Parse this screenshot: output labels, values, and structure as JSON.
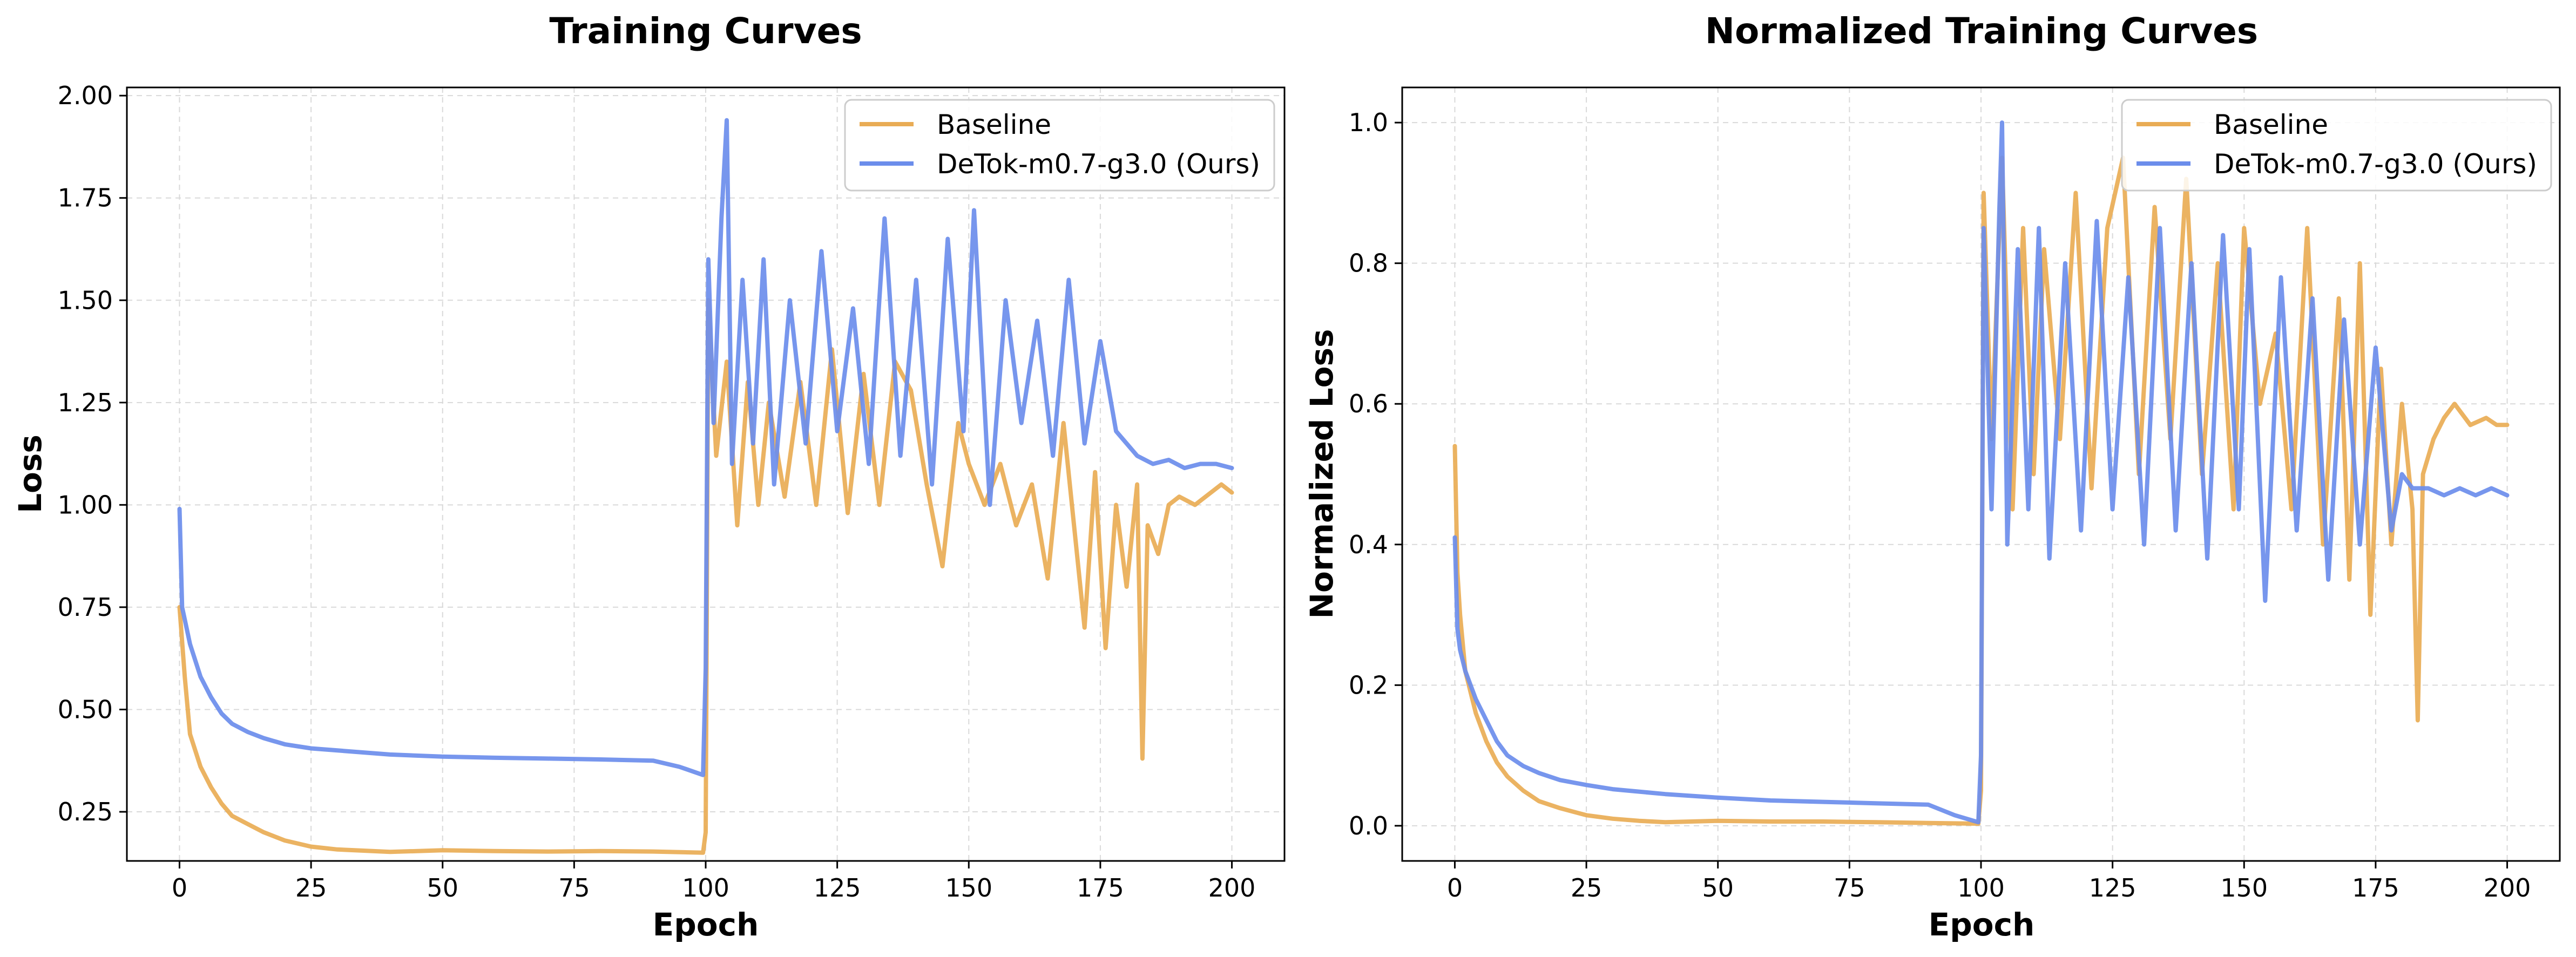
{
  "colors": {
    "baseline": "#E9AC55",
    "detok": "#6B8DEB"
  },
  "chart_data": [
    {
      "type": "line",
      "title": "Training Curves",
      "xlabel": "Epoch",
      "ylabel": "Loss",
      "xlim": [
        -10,
        210
      ],
      "ylim": [
        0.13,
        2.02
      ],
      "xticks": [
        0,
        25,
        50,
        75,
        100,
        125,
        150,
        175,
        200
      ],
      "xtick_labels": [
        "0",
        "25",
        "50",
        "75",
        "100",
        "125",
        "150",
        "175",
        "200"
      ],
      "yticks": [
        0.25,
        0.5,
        0.75,
        1.0,
        1.25,
        1.5,
        1.75,
        2.0
      ],
      "ytick_labels": [
        "0.25",
        "0.50",
        "0.75",
        "1.00",
        "1.25",
        "1.50",
        "1.75",
        "2.00"
      ],
      "grid": true,
      "legend": "top-right",
      "series": [
        {
          "name": "Baseline",
          "color": "#E9AC55",
          "x": [
            0,
            1,
            2,
            4,
            6,
            8,
            10,
            13,
            16,
            20,
            25,
            30,
            35,
            40,
            50,
            60,
            70,
            80,
            90,
            99.5,
            100,
            100.5,
            102,
            104,
            106,
            108,
            110,
            112,
            115,
            118,
            121,
            124,
            127,
            130,
            133,
            136,
            139,
            142,
            145,
            148,
            150,
            153,
            156,
            159,
            162,
            165,
            168,
            170,
            172,
            174,
            176,
            178,
            180,
            182,
            183,
            184,
            186,
            188,
            190,
            193,
            196,
            198,
            200
          ],
          "y": [
            0.75,
            0.58,
            0.44,
            0.36,
            0.31,
            0.27,
            0.24,
            0.22,
            0.2,
            0.18,
            0.165,
            0.158,
            0.155,
            0.152,
            0.156,
            0.154,
            0.153,
            0.154,
            0.153,
            0.15,
            0.2,
            1.5,
            1.12,
            1.35,
            0.95,
            1.3,
            1.0,
            1.25,
            1.02,
            1.3,
            1.0,
            1.38,
            0.98,
            1.32,
            1.0,
            1.35,
            1.28,
            1.05,
            0.85,
            1.2,
            1.1,
            1.0,
            1.1,
            0.95,
            1.05,
            0.82,
            1.2,
            0.95,
            0.7,
            1.08,
            0.65,
            1.0,
            0.8,
            1.05,
            0.38,
            0.95,
            0.88,
            1.0,
            1.02,
            1.0,
            1.03,
            1.05,
            1.03
          ]
        },
        {
          "name": "DeTok-m0.7-g3.0 (Ours)",
          "color": "#6B8DEB",
          "x": [
            0,
            0.5,
            1,
            2,
            4,
            6,
            8,
            10,
            13,
            16,
            20,
            25,
            30,
            40,
            50,
            60,
            70,
            80,
            90,
            95,
            99.5,
            100,
            100.5,
            101.5,
            103,
            104,
            105,
            107,
            109,
            111,
            113,
            116,
            119,
            122,
            125,
            128,
            131,
            134,
            137,
            140,
            143,
            146,
            149,
            151,
            154,
            157,
            160,
            163,
            166,
            169,
            172,
            175,
            178,
            180,
            182,
            185,
            188,
            191,
            194,
            197,
            200
          ],
          "y": [
            0.99,
            0.75,
            0.72,
            0.66,
            0.58,
            0.53,
            0.49,
            0.465,
            0.445,
            0.43,
            0.415,
            0.405,
            0.4,
            0.39,
            0.385,
            0.382,
            0.38,
            0.378,
            0.375,
            0.36,
            0.34,
            0.6,
            1.6,
            1.2,
            1.7,
            1.94,
            1.1,
            1.55,
            1.15,
            1.6,
            1.05,
            1.5,
            1.15,
            1.62,
            1.18,
            1.48,
            1.1,
            1.7,
            1.12,
            1.55,
            1.05,
            1.65,
            1.18,
            1.72,
            1.0,
            1.5,
            1.2,
            1.45,
            1.12,
            1.55,
            1.15,
            1.4,
            1.18,
            1.15,
            1.12,
            1.1,
            1.11,
            1.09,
            1.1,
            1.1,
            1.09
          ]
        }
      ]
    },
    {
      "type": "line",
      "title": "Normalized Training Curves",
      "xlabel": "Epoch",
      "ylabel": "Normalized Loss",
      "xlim": [
        -10,
        210
      ],
      "ylim": [
        -0.05,
        1.05
      ],
      "xticks": [
        0,
        25,
        50,
        75,
        100,
        125,
        150,
        175,
        200
      ],
      "xtick_labels": [
        "0",
        "25",
        "50",
        "75",
        "100",
        "125",
        "150",
        "175",
        "200"
      ],
      "yticks": [
        0.0,
        0.2,
        0.4,
        0.6,
        0.8,
        1.0
      ],
      "ytick_labels": [
        "0.0",
        "0.2",
        "0.4",
        "0.6",
        "0.8",
        "1.0"
      ],
      "grid": true,
      "legend": "top-right",
      "series": [
        {
          "name": "Baseline",
          "color": "#E9AC55",
          "x": [
            0,
            0.5,
            1,
            2,
            4,
            6,
            8,
            10,
            13,
            16,
            20,
            25,
            30,
            35,
            40,
            50,
            60,
            70,
            80,
            90,
            99.5,
            100,
            100.5,
            102,
            104,
            106,
            108,
            110,
            112,
            115,
            118,
            121,
            124,
            127,
            130,
            133,
            136,
            139,
            142,
            145,
            148,
            150,
            153,
            156,
            159,
            162,
            165,
            168,
            170,
            172,
            174,
            176,
            178,
            180,
            182,
            183,
            184,
            186,
            188,
            190,
            193,
            196,
            198,
            200
          ],
          "y": [
            0.54,
            0.36,
            0.3,
            0.22,
            0.16,
            0.12,
            0.09,
            0.07,
            0.05,
            0.035,
            0.025,
            0.015,
            0.01,
            0.007,
            0.005,
            0.007,
            0.006,
            0.006,
            0.005,
            0.004,
            0.003,
            0.05,
            0.9,
            0.55,
            0.95,
            0.45,
            0.85,
            0.5,
            0.82,
            0.55,
            0.9,
            0.48,
            0.85,
            0.95,
            0.5,
            0.88,
            0.55,
            0.92,
            0.5,
            0.8,
            0.45,
            0.85,
            0.6,
            0.7,
            0.45,
            0.85,
            0.4,
            0.75,
            0.35,
            0.8,
            0.3,
            0.65,
            0.4,
            0.6,
            0.45,
            0.15,
            0.5,
            0.55,
            0.58,
            0.6,
            0.57,
            0.58,
            0.57,
            0.57
          ]
        },
        {
          "name": "DeTok-m0.7-g3.0 (Ours)",
          "color": "#6B8DEB",
          "x": [
            0,
            0.5,
            1,
            2,
            4,
            6,
            8,
            10,
            13,
            16,
            20,
            25,
            30,
            40,
            50,
            60,
            70,
            80,
            90,
            95,
            99.5,
            100,
            100.5,
            102,
            103.5,
            104,
            105,
            107,
            109,
            111,
            113,
            116,
            119,
            122,
            125,
            128,
            131,
            134,
            137,
            140,
            143,
            146,
            149,
            151,
            154,
            157,
            160,
            163,
            166,
            169,
            172,
            175,
            178,
            180,
            182,
            185,
            188,
            191,
            194,
            197,
            200
          ],
          "y": [
            0.41,
            0.28,
            0.25,
            0.22,
            0.18,
            0.15,
            0.12,
            0.1,
            0.085,
            0.075,
            0.065,
            0.058,
            0.052,
            0.045,
            0.04,
            0.036,
            0.034,
            0.032,
            0.03,
            0.015,
            0.005,
            0.1,
            0.85,
            0.45,
            0.88,
            1.0,
            0.4,
            0.82,
            0.45,
            0.85,
            0.38,
            0.8,
            0.42,
            0.86,
            0.45,
            0.78,
            0.4,
            0.85,
            0.42,
            0.8,
            0.38,
            0.84,
            0.45,
            0.82,
            0.32,
            0.78,
            0.42,
            0.75,
            0.35,
            0.72,
            0.4,
            0.68,
            0.42,
            0.5,
            0.48,
            0.48,
            0.47,
            0.48,
            0.47,
            0.48,
            0.47
          ]
        }
      ]
    }
  ]
}
